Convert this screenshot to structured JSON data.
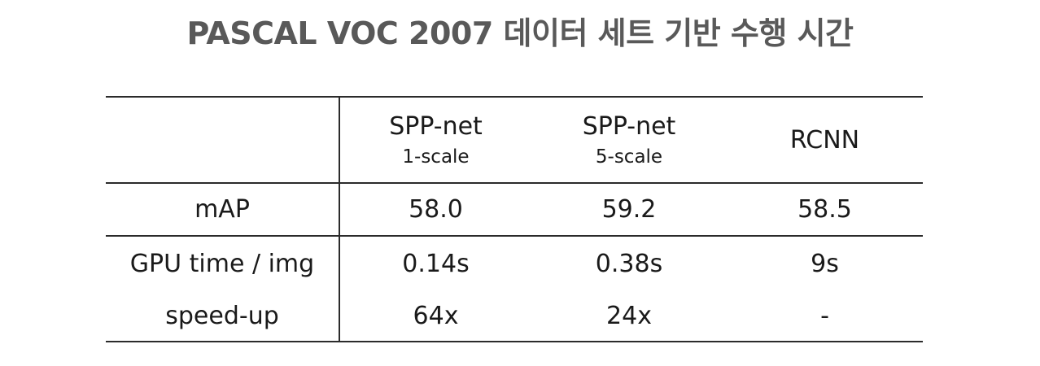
{
  "title": "PASCAL VOC 2007 데이터 세트 기반 수행 시간",
  "table": {
    "columns": [
      {
        "name": "SPP-net",
        "sub": "1-scale"
      },
      {
        "name": "SPP-net",
        "sub": "5-scale"
      },
      {
        "name": "RCNN",
        "sub": ""
      }
    ],
    "rows": {
      "map": {
        "label": "mAP",
        "values": [
          "58.0",
          "59.2",
          "58.5"
        ]
      },
      "gpu": {
        "label": "GPU time / img",
        "values": [
          "0.14s",
          "0.38s",
          "9s"
        ]
      },
      "speedup": {
        "label": "speed-up",
        "values": [
          "64x",
          "24x",
          "-"
        ]
      }
    }
  },
  "colors": {
    "title": "#595959",
    "text": "#1a1a1a",
    "highlight_red": "#ff2a1a",
    "rule": "#2b2b2b"
  }
}
